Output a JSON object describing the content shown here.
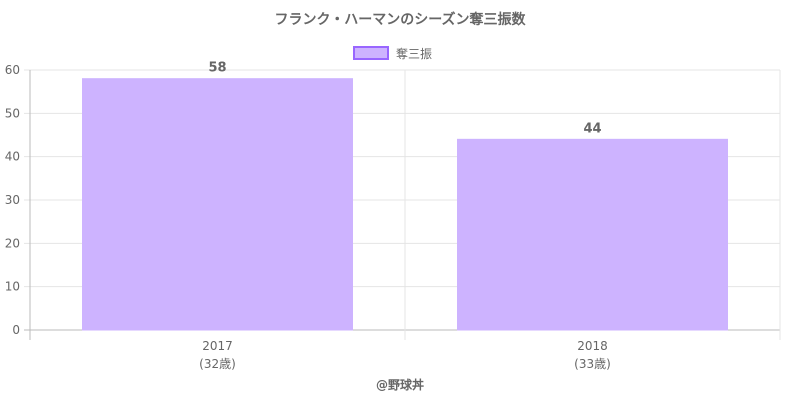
{
  "colors": {
    "bar_fill": "#cdb3ff",
    "bar_border": "#9966ff",
    "text": "#666666",
    "grid": "#e5e5e5",
    "axis": "#bbbbbb"
  },
  "chart_data": {
    "type": "bar",
    "title": "フランク・ハーマンのシーズン奪三振数",
    "categories": [
      "2017",
      "2018"
    ],
    "category_sublabels": [
      "(32歳)",
      "(33歳)"
    ],
    "series": [
      {
        "name": "奪三振",
        "values": [
          58,
          44
        ]
      }
    ],
    "ylim": [
      0,
      60
    ],
    "yticks": [
      0,
      10,
      20,
      30,
      40,
      50,
      60
    ],
    "grid": true,
    "legend": "top-center",
    "data_labels": [
      "58",
      "44"
    ]
  },
  "footer": "@野球丼"
}
